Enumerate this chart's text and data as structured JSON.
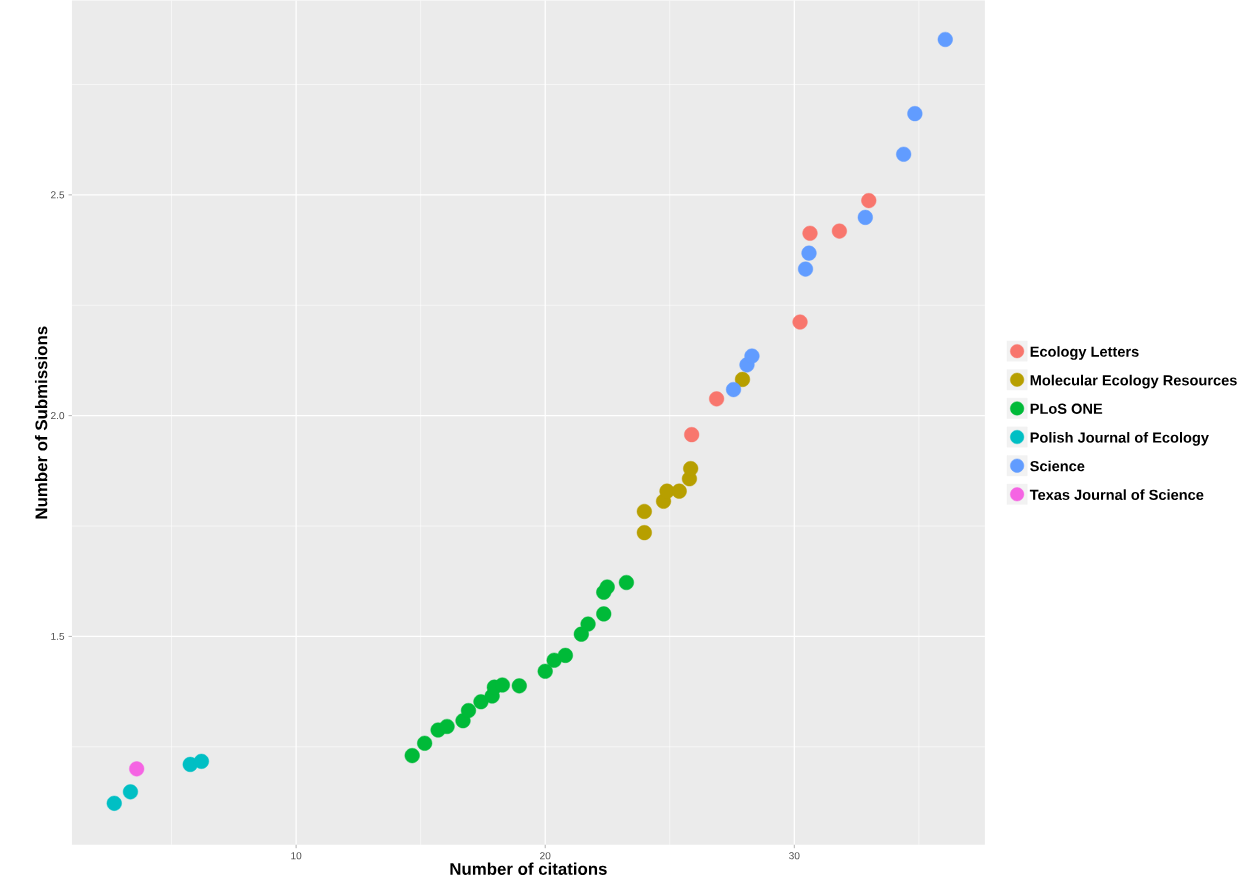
{
  "chart_data": {
    "type": "scatter",
    "xlabel": "Number of citations",
    "ylabel": "Number of Submissions",
    "xlim": [
      1.0,
      37.65
    ],
    "ylim": [
      1.028,
      2.94
    ],
    "xticks": [
      10,
      20,
      30
    ],
    "yticks": [
      {
        "value": 1.5,
        "label": "1.5"
      },
      {
        "value": 2.0,
        "label": "2.0"
      },
      {
        "value": 2.5,
        "label": "2.5"
      }
    ],
    "grid": true,
    "legend": "right",
    "marker": "circle",
    "series": [
      {
        "name": "Ecology Letters",
        "color": "#f8766d",
        "x": [
          25.88,
          26.88,
          30.23,
          30.63,
          31.81,
          32.99
        ],
        "values": [
          1.957,
          2.038,
          2.212,
          2.413,
          2.418,
          2.487
        ]
      },
      {
        "name": "Molecular Ecology Resources",
        "color": "#b79f00",
        "x": [
          23.98,
          23.98,
          24.75,
          24.89,
          25.38,
          25.79,
          25.84,
          27.92
        ],
        "values": [
          1.735,
          1.783,
          1.806,
          1.829,
          1.829,
          1.857,
          1.88,
          2.082
        ]
      },
      {
        "name": "PLoS ONE",
        "color": "#00ba38",
        "x": [
          14.66,
          15.16,
          15.7,
          16.06,
          16.7,
          16.92,
          17.42,
          17.87,
          17.96,
          18.28,
          18.96,
          20.0,
          20.36,
          20.81,
          21.45,
          21.72,
          22.35,
          22.35,
          22.49,
          23.26
        ],
        "values": [
          1.23,
          1.258,
          1.288,
          1.296,
          1.309,
          1.332,
          1.352,
          1.365,
          1.385,
          1.39,
          1.388,
          1.421,
          1.446,
          1.457,
          1.505,
          1.528,
          1.551,
          1.6,
          1.612,
          1.622
        ]
      },
      {
        "name": "Polish Journal of Ecology",
        "color": "#00bfc4",
        "x": [
          2.7,
          3.35,
          5.75,
          6.2
        ],
        "values": [
          1.122,
          1.148,
          1.21,
          1.217
        ]
      },
      {
        "name": "Science",
        "color": "#619cff",
        "x": [
          27.56,
          28.1,
          28.3,
          30.45,
          30.59,
          32.85,
          34.39,
          34.84,
          36.06
        ],
        "values": [
          2.059,
          2.115,
          2.135,
          2.332,
          2.368,
          2.449,
          2.592,
          2.684,
          2.852
        ]
      },
      {
        "name": "Texas Journal of Science",
        "color": "#f564e3",
        "x": [
          3.6
        ],
        "values": [
          1.2
        ]
      }
    ]
  }
}
